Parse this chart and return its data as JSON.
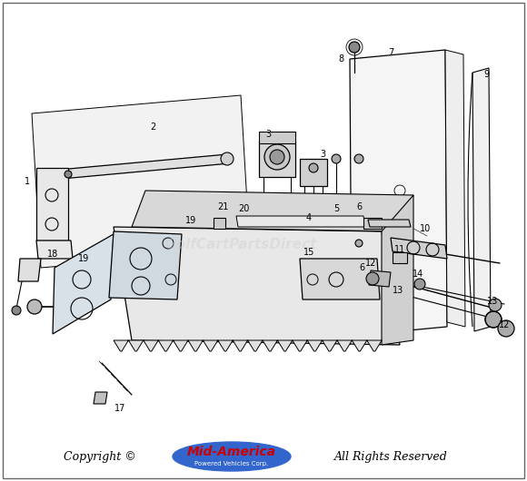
{
  "background_color": "#ffffff",
  "line_color": "#000000",
  "line_width": 0.8,
  "fig_width": 5.8,
  "fig_height": 5.3,
  "dpi": 100,
  "copyright_text": "Copyright ©",
  "copyright_all_rights": "All Rights Reserved",
  "brand_name": "Mid-America",
  "brand_subtitle": "Powered Vehicles Corp.",
  "brand_color_main": "#cc0000",
  "brand_bg": "#3366cc",
  "watermark_text": "GolfCartPartsDirect",
  "label_fontsize": 7.0,
  "footer_fontsize": 9.0
}
